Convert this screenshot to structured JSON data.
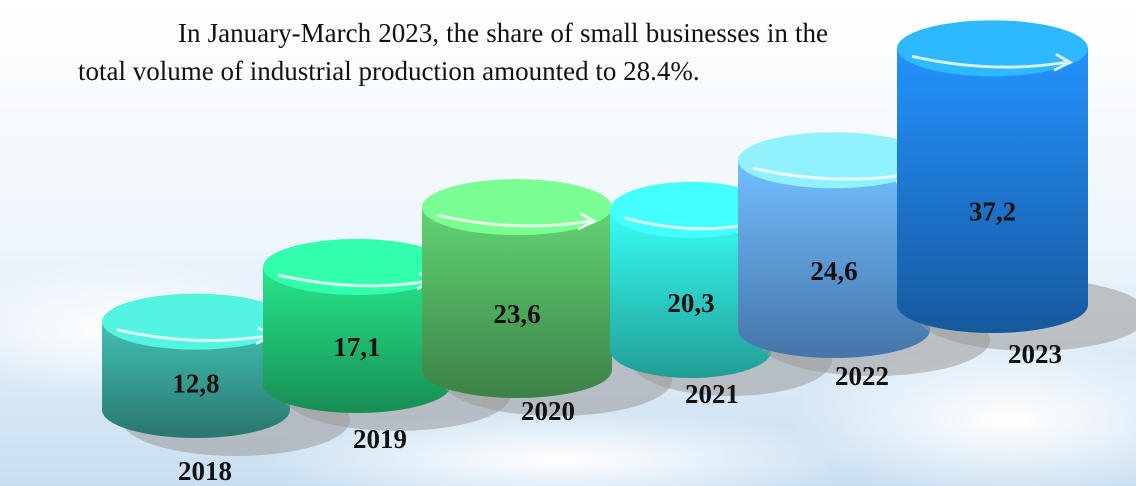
{
  "chart_data": {
    "type": "cylinder",
    "annotation": "In January-March 2023, the share of small businesses in the total volume of industrial production amounted to 28.4%.",
    "categories": [
      "2018",
      "2019",
      "2020",
      "2021",
      "2022",
      "2023"
    ],
    "values": [
      12.8,
      17.1,
      23.6,
      20.3,
      24.6,
      37.2
    ],
    "value_labels": [
      "12,8",
      "17,1",
      "23,6",
      "20,3",
      "24,6",
      "37,2"
    ],
    "colors": [
      "#3aa89c",
      "#22c978",
      "#55b865",
      "#2fe0d6",
      "#63a6f2",
      "#1f7fe0"
    ]
  }
}
